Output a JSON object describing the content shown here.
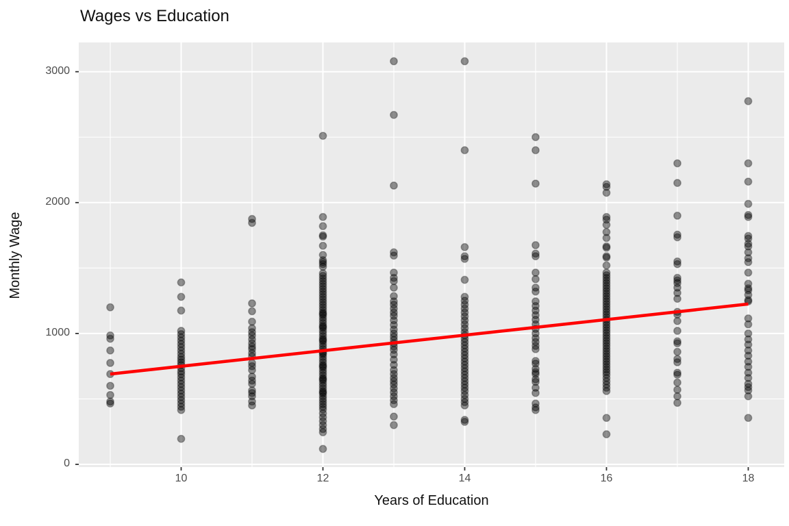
{
  "title": "Wages vs Education",
  "chart_data": {
    "type": "scatter",
    "title": "Wages vs Education",
    "xlabel": "Years of Education",
    "ylabel": "Monthly Wage",
    "xlim": [
      8.56,
      18.51
    ],
    "ylim": [
      -21,
      3228
    ],
    "x_ticks": [
      10,
      12,
      14,
      16,
      18
    ],
    "y_ticks": [
      0,
      1000,
      2000,
      3000
    ],
    "x_minor_ticks": [
      9,
      11,
      13,
      15,
      17
    ],
    "y_minor_ticks": [
      500,
      1500,
      2500
    ],
    "grid": "on",
    "legend": "none",
    "panel_bg": "#EBEBEB",
    "grid_color": "#FFFFFF",
    "tick_color": "#333333",
    "tick_label_color": "#4D4D4D",
    "point_color": "rgba(0,0,0,0.42)",
    "point_edge_color": "rgba(0,0,0,0.30)",
    "trend_color": "#FF0000",
    "trend_line": {
      "x": [
        9,
        18
      ],
      "y": [
        690,
        1225
      ]
    },
    "series": [
      {
        "name": "observations",
        "groups": [
          {
            "x": 9,
            "wages": [
              1200,
              985,
              960,
              870,
              775,
              690,
              600,
              530,
              480,
              465
            ]
          },
          {
            "x": 10,
            "wages": [
              1390,
              1280,
              1175,
              1020,
              995,
              970,
              945,
              920,
              895,
              870,
              845,
              820,
              800,
              780,
              760,
              735,
              710,
              690,
              665,
              640,
              615,
              590,
              565,
              540,
              515,
              490,
              465,
              440,
              415,
              195
            ]
          },
          {
            "x": 11,
            "wages": [
              1875,
              1845,
              1230,
              1170,
              1090,
              1040,
              1010,
              985,
              955,
              925,
              900,
              880,
              850,
              825,
              775,
              750,
              720,
              670,
              640,
              615,
              565,
              545,
              520,
              480,
              450
            ]
          },
          {
            "x": 12,
            "wages": [
              2510,
              1890,
              1820,
              1750,
              1740,
              1670,
              1600,
              1560,
              1545,
              1530,
              1510,
              1460,
              1440,
              1420,
              1400,
              1380,
              1360,
              1340,
              1320,
              1300,
              1280,
              1260,
              1240,
              1220,
              1200,
              1180,
              1160,
              1150,
              1140,
              1120,
              1100,
              1080,
              1060,
              1050,
              1040,
              1020,
              1000,
              980,
              960,
              950,
              940,
              920,
              900,
              880,
              860,
              850,
              840,
              820,
              800,
              780,
              760,
              750,
              740,
              720,
              700,
              680,
              660,
              650,
              640,
              620,
              600,
              580,
              560,
              550,
              540,
              520,
              500,
              480,
              460,
              440,
              420,
              390,
              360,
              330,
              300,
              270,
              245,
              118
            ]
          },
          {
            "x": 13,
            "wages": [
              3080,
              2670,
              2130,
              1620,
              1595,
              1465,
              1425,
              1400,
              1350,
              1285,
              1245,
              1220,
              1190,
              1160,
              1135,
              1100,
              1065,
              1030,
              1000,
              975,
              950,
              925,
              900,
              875,
              840,
              800,
              760,
              720,
              690,
              660,
              635,
              610,
              580,
              550,
              520,
              490,
              460,
              365,
              300
            ]
          },
          {
            "x": 14,
            "wages": [
              3080,
              2400,
              1660,
              1590,
              1570,
              1410,
              1280,
              1250,
              1220,
              1190,
              1160,
              1130,
              1100,
              1070,
              1040,
              1010,
              985,
              960,
              935,
              910,
              885,
              860,
              835,
              810,
              785,
              760,
              735,
              710,
              685,
              660,
              635,
              610,
              585,
              560,
              530,
              500,
              475,
              450,
              340,
              325
            ]
          },
          {
            "x": 15,
            "wages": [
              2500,
              2400,
              2145,
              1675,
              1610,
              1590,
              1465,
              1415,
              1350,
              1320,
              1245,
              1210,
              1175,
              1140,
              1105,
              1070,
              1035,
              1000,
              965,
              935,
              905,
              880,
              790,
              770,
              730,
              705,
              690,
              650,
              630,
              585,
              545,
              465,
              435,
              415
            ]
          },
          {
            "x": 16,
            "wages": [
              2140,
              2120,
              2075,
              1890,
              1870,
              1830,
              1775,
              1730,
              1665,
              1655,
              1590,
              1580,
              1520,
              1465,
              1445,
              1425,
              1405,
              1385,
              1365,
              1345,
              1325,
              1305,
              1285,
              1265,
              1245,
              1225,
              1205,
              1185,
              1165,
              1145,
              1125,
              1105,
              1085,
              1065,
              1045,
              1025,
              1005,
              985,
              965,
              945,
              925,
              905,
              885,
              865,
              845,
              825,
              805,
              785,
              765,
              745,
              725,
              705,
              685,
              660,
              635,
              610,
              585,
              560,
              355,
              230
            ]
          },
          {
            "x": 17,
            "wages": [
              2300,
              2150,
              1900,
              1755,
              1735,
              1550,
              1530,
              1425,
              1405,
              1385,
              1350,
              1310,
              1265,
              1165,
              1145,
              1095,
              1020,
              940,
              925,
              860,
              805,
              780,
              700,
              685,
              625,
              570,
              520,
              470
            ]
          },
          {
            "x": 18,
            "wages": [
              2775,
              2300,
              2160,
              1990,
              1905,
              1890,
              1745,
              1725,
              1685,
              1665,
              1620,
              1575,
              1545,
              1465,
              1380,
              1345,
              1330,
              1295,
              1255,
              1245,
              1115,
              1070,
              1000,
              955,
              915,
              870,
              830,
              785,
              745,
              700,
              660,
              615,
              590,
              565,
              520,
              355
            ]
          }
        ]
      }
    ]
  }
}
